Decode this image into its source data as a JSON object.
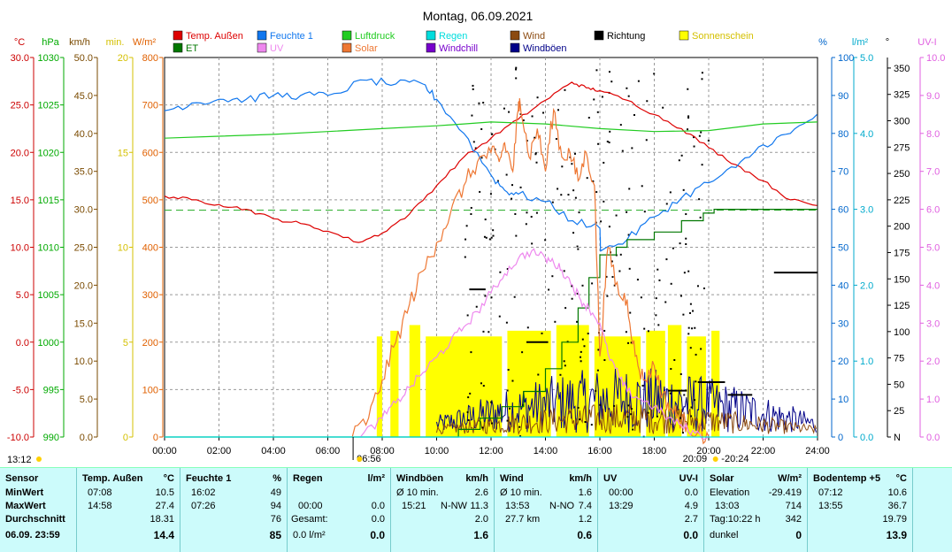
{
  "chart_data": {
    "type": "line",
    "title": "Montag, 06.09.2021",
    "x_ticks": [
      "00:00",
      "02:00",
      "04:00",
      "06:00",
      "08:00",
      "10:00",
      "12:00",
      "14:00",
      "16:00",
      "18:00",
      "20:00",
      "22:00",
      "24:00"
    ],
    "x_range_hours": [
      0,
      24
    ],
    "axes": [
      {
        "name": "temperature",
        "unit": "°C",
        "color": "#cc0000",
        "range": [
          -10,
          30
        ],
        "ticks": [
          "30.0",
          "25.0",
          "20.0",
          "15.0",
          "10.0",
          "5.0",
          "0.0",
          "-5.0",
          "-10.0"
        ]
      },
      {
        "name": "pressure",
        "unit": "hPa",
        "color": "#00aa00",
        "range": [
          990,
          1030
        ],
        "ticks": [
          "1030",
          "1025",
          "1020",
          "1015",
          "1010",
          "1005",
          "1000",
          "995",
          "990"
        ]
      },
      {
        "name": "wind",
        "unit": "km/h",
        "color": "#7a4a00",
        "range": [
          0,
          50
        ],
        "ticks": [
          "50.0",
          "45.0",
          "40.0",
          "35.0",
          "30.0",
          "25.0",
          "20.0",
          "15.0",
          "10.0",
          "5.0",
          "0.0"
        ]
      },
      {
        "name": "sunshine",
        "unit": "min.",
        "color": "#d4c000",
        "range": [
          0,
          20
        ],
        "ticks": [
          "20",
          "",
          "",
          "",
          "",
          "15",
          "",
          "",
          "",
          "",
          "10",
          "",
          "",
          "",
          "",
          "5",
          "",
          "",
          "",
          "",
          "0"
        ]
      },
      {
        "name": "solar",
        "unit": "W/m²",
        "color": "#e06000",
        "range": [
          0,
          800
        ],
        "ticks": [
          "800",
          "700",
          "600",
          "500",
          "400",
          "300",
          "200",
          "100",
          "0"
        ]
      },
      {
        "name": "humidity",
        "unit": "%",
        "color": "#0066cc",
        "range": [
          0,
          100
        ],
        "ticks": [
          "100",
          "90",
          "80",
          "70",
          "60",
          "50",
          "40",
          "30",
          "20",
          "10",
          "0"
        ]
      },
      {
        "name": "rain",
        "unit": "l/m²",
        "color": "#00aacc",
        "range": [
          0,
          5
        ],
        "ticks": [
          "5.0",
          "4.0",
          "3.0",
          "2.0",
          "1.0",
          "0.0"
        ]
      },
      {
        "name": "direction",
        "unit": "°",
        "color": "#000000",
        "range": [
          0,
          360
        ],
        "ticks": [
          "350",
          "325",
          "300",
          "275",
          "250",
          "225",
          "200",
          "175",
          "150",
          "125",
          "100",
          "75",
          "50",
          "25",
          "N"
        ]
      },
      {
        "name": "uv",
        "unit": "UV-I",
        "color": "#e060e0",
        "range": [
          0,
          10
        ],
        "ticks": [
          "10.0",
          "9.0",
          "8.0",
          "7.0",
          "6.0",
          "5.0",
          "4.0",
          "3.0",
          "2.0",
          "1.0",
          "0.0"
        ]
      }
    ],
    "legend": [
      {
        "label": "Temp. Außen",
        "color": "#dd0000"
      },
      {
        "label": "Feuchte 1",
        "color": "#1177ee"
      },
      {
        "label": "Luftdruck",
        "color": "#22cc22"
      },
      {
        "label": "Regen",
        "color": "#00dddd"
      },
      {
        "label": "Wind",
        "color": "#8b4a10"
      },
      {
        "label": "Richtung",
        "color": "#000000"
      },
      {
        "label": "Sonnenschein",
        "color": "#ffff00"
      },
      {
        "label": "ET",
        "color": "#007700"
      },
      {
        "label": "UV",
        "color": "#ee88ee"
      },
      {
        "label": "Solar",
        "color": "#ee7733"
      },
      {
        "label": "Windchill",
        "color": "#7700cc"
      },
      {
        "label": "Windböen",
        "color": "#000088"
      }
    ],
    "series": [
      {
        "name": "Temp. Außen",
        "axis": "temperature",
        "color": "#dd0000",
        "hours": [
          0,
          1,
          2,
          3,
          4,
          5,
          6,
          7.13,
          8,
          9,
          10,
          11,
          12,
          13,
          14,
          14.97,
          15.5,
          16,
          17,
          18,
          19,
          20,
          21,
          22,
          23,
          23.98
        ],
        "values": [
          15.4,
          15.0,
          14.5,
          14.0,
          13.0,
          12.5,
          11.7,
          10.5,
          11.5,
          13.5,
          16.5,
          19.5,
          21.5,
          23.5,
          25.5,
          27.4,
          26.8,
          26.5,
          25.5,
          24.0,
          22.5,
          20.5,
          18.7,
          17.0,
          15.0,
          14.4
        ]
      },
      {
        "name": "Feuchte 1",
        "axis": "humidity",
        "color": "#1177ee",
        "hours": [
          0,
          1,
          2,
          3,
          4,
          5,
          6,
          7.43,
          8.5,
          9.5,
          10,
          11,
          12,
          12.5,
          13,
          14,
          15,
          16,
          16.03,
          17,
          18,
          19,
          20,
          21,
          22,
          23,
          23.98
        ],
        "values": [
          86,
          88,
          89,
          89,
          90,
          90,
          90,
          94,
          93,
          93,
          89,
          80,
          69,
          65,
          64,
          62,
          57,
          55,
          49,
          52,
          58,
          63,
          67,
          71,
          77,
          80,
          85
        ]
      },
      {
        "name": "Luftdruck",
        "axis": "pressure",
        "color": "#22cc22",
        "hours": [
          0,
          2,
          4,
          6,
          8,
          10,
          11,
          12,
          14,
          16,
          18,
          20,
          22,
          24
        ],
        "values": [
          1021.5,
          1021.7,
          1021.9,
          1022.2,
          1022.5,
          1022.8,
          1023.0,
          1023.2,
          1023.0,
          1022.5,
          1022.2,
          1022.3,
          1023.0,
          1023.2
        ]
      },
      {
        "name": "ET",
        "axis": "rain",
        "color": "#007700",
        "step": true,
        "hours": [
          0,
          9.9,
          10.8,
          11.6,
          12.4,
          13.2,
          14.0,
          14.6,
          15.2,
          15.6,
          16.0,
          16.6,
          17.0,
          18.0,
          19.0,
          19.8,
          20.2,
          24
        ],
        "values": [
          0,
          0,
          0.1,
          0.25,
          0.4,
          0.6,
          0.9,
          1.25,
          1.7,
          2.1,
          2.4,
          2.5,
          2.6,
          2.7,
          2.85,
          2.95,
          3.0,
          3.0
        ]
      },
      {
        "name": "Solar",
        "axis": "solar",
        "color": "#ee7733",
        "hours": [
          6.9,
          7.5,
          8,
          8.5,
          9,
          9.5,
          10,
          10.5,
          11,
          11.5,
          12,
          12.3,
          12.5,
          12.8,
          13,
          13.05,
          13.4,
          13.7,
          14,
          14.3,
          14.6,
          14.9,
          15.2,
          15.5,
          15.8,
          16,
          16.3,
          16.7,
          17,
          17.3,
          17.6,
          18,
          18.3,
          18.6,
          18.9,
          19.2,
          19.6,
          20
        ],
        "values": [
          0,
          40,
          120,
          200,
          280,
          350,
          410,
          470,
          530,
          580,
          600,
          580,
          620,
          560,
          690,
          714,
          590,
          650,
          560,
          690,
          590,
          600,
          540,
          600,
          530,
          170,
          400,
          300,
          290,
          170,
          120,
          150,
          90,
          60,
          40,
          25,
          10,
          0
        ]
      },
      {
        "name": "UV",
        "axis": "uv",
        "color": "#ee88ee",
        "hours": [
          7.2,
          8,
          8.5,
          9,
          9.5,
          10,
          10.5,
          11,
          11.5,
          12,
          12.5,
          13,
          13.49,
          14,
          14.3,
          14.6,
          15,
          15.3,
          15.6,
          16,
          16.3,
          16.7,
          17,
          17.5,
          18,
          18.5,
          19,
          19.5,
          20
        ],
        "values": [
          0,
          0.5,
          0.9,
          1.3,
          1.7,
          2.1,
          2.5,
          2.9,
          3.3,
          3.8,
          4.3,
          4.7,
          4.9,
          4.7,
          4.6,
          4.4,
          4.0,
          3.6,
          3.4,
          3.0,
          2.2,
          1.6,
          1.2,
          1.0,
          0.8,
          0.5,
          0.3,
          0.1,
          0
        ]
      },
      {
        "name": "Regen",
        "axis": "rain",
        "color": "#00dddd",
        "hours": [
          0,
          24
        ],
        "values": [
          0,
          0
        ]
      }
    ],
    "reference_lines": [
      {
        "axis": "temperature",
        "value": 13.9,
        "color": "#22aa22",
        "style": "dashed",
        "label": "Bodentemp Durchschnitt"
      }
    ],
    "annotations": {
      "left_bottom": "13:12",
      "sunrise": "06:56",
      "sunset": "20:09",
      "dusk": "20:24"
    }
  },
  "stats": {
    "row_labels": {
      "title": "Sensor",
      "min": "MinWert",
      "max": "MaxWert",
      "avg": "Durchschnitt",
      "current": "06.09. 23:59"
    },
    "temp": {
      "title": "Temp. Außen",
      "unit": "°C",
      "min_time": "07:08",
      "min": "10.5",
      "max_time": "14:58",
      "max": "27.4",
      "avg": "18.31",
      "current": "14.4"
    },
    "humidity": {
      "title": "Feuchte 1",
      "unit": "%",
      "min_time": "16:02",
      "min": "49",
      "max_time": "07:26",
      "max": "94",
      "avg": "76",
      "current": "85"
    },
    "rain": {
      "title": "Regen",
      "unit": "l/m²",
      "max_time": "00:00",
      "max": "0.0",
      "total_label": "Gesamt:",
      "total": "0.0",
      "current_rate": "0.0 l/m²",
      "current": "0.0"
    },
    "gust": {
      "title": "Windböen",
      "unit": "km/h",
      "avg_label": "Ø 10 min.",
      "avg_value": "2.6",
      "max_time": "15:21",
      "max_dir": "N-NW",
      "max": "11.3",
      "avg": "2.0",
      "current": "1.6"
    },
    "wind": {
      "title": "Wind",
      "unit": "km/h",
      "avg_label": "Ø 10 min.",
      "avg_value": "1.6",
      "max_time": "13:53",
      "max_dir": "N-NO",
      "max": "7.4",
      "run": "27.7 km",
      "avg": "1.2",
      "current": "0.6"
    },
    "uv": {
      "title": "UV",
      "unit": "UV-I",
      "min_time": "00:00",
      "min": "0.0",
      "max_time": "13:29",
      "max": "4.9",
      "avg": "2.7",
      "current": "0.0"
    },
    "solar": {
      "title": "Solar",
      "unit": "W/m²",
      "elev_label": "Elevation",
      "elev": "-29.419",
      "max_time": "13:03",
      "max": "714",
      "day_label": "Tag:10:22 h",
      "avg": "342",
      "state": "dunkel",
      "current": "0"
    },
    "soil": {
      "title": "Bodentemp +5",
      "unit": "°C",
      "min_time": "07:12",
      "min": "10.6",
      "max_time": "13:55",
      "max": "36.7",
      "avg": "19.79",
      "current": "13.9"
    }
  }
}
